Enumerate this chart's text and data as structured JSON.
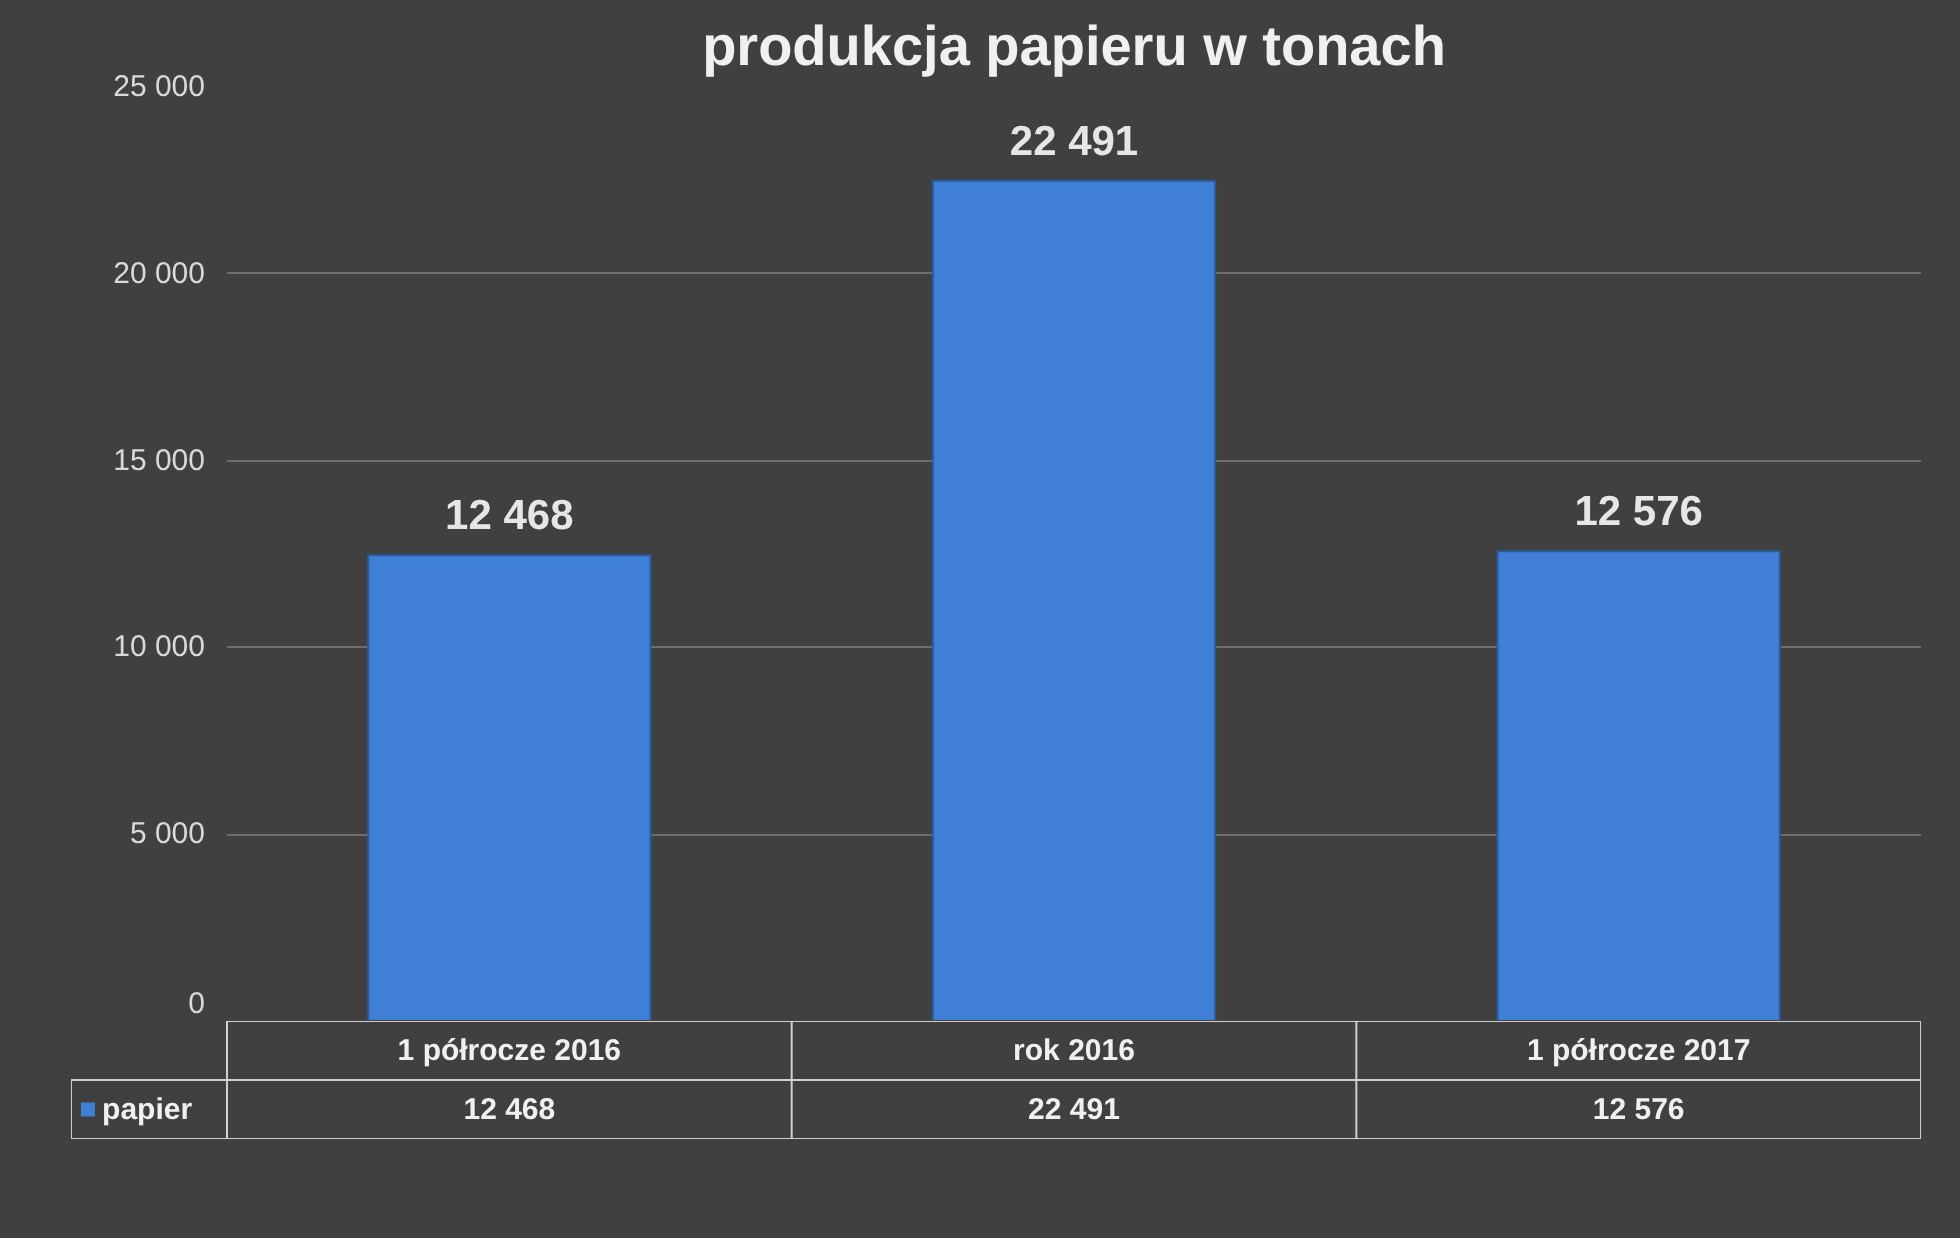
{
  "chart_data": {
    "type": "bar",
    "title": "produkcja papieru w tonach",
    "categories": [
      "1 półrocze 2016",
      "rok 2016",
      "1 półrocze 2017"
    ],
    "series": [
      {
        "name": "papier",
        "color": "#3f80d6",
        "values": [
          12468,
          22491,
          12576
        ],
        "value_labels": [
          "12 468",
          "22 491",
          "12 576"
        ]
      }
    ],
    "ylim": [
      0,
      25000
    ],
    "yticks": [
      {
        "value": 0,
        "label": "0"
      },
      {
        "value": 5000,
        "label": "5 000"
      },
      {
        "value": 10000,
        "label": "10 000"
      },
      {
        "value": 15000,
        "label": "15 000"
      },
      {
        "value": 20000,
        "label": "20 000"
      },
      {
        "value": 25000,
        "label": "25 000"
      }
    ],
    "grid": "y",
    "legend": "bottom"
  }
}
